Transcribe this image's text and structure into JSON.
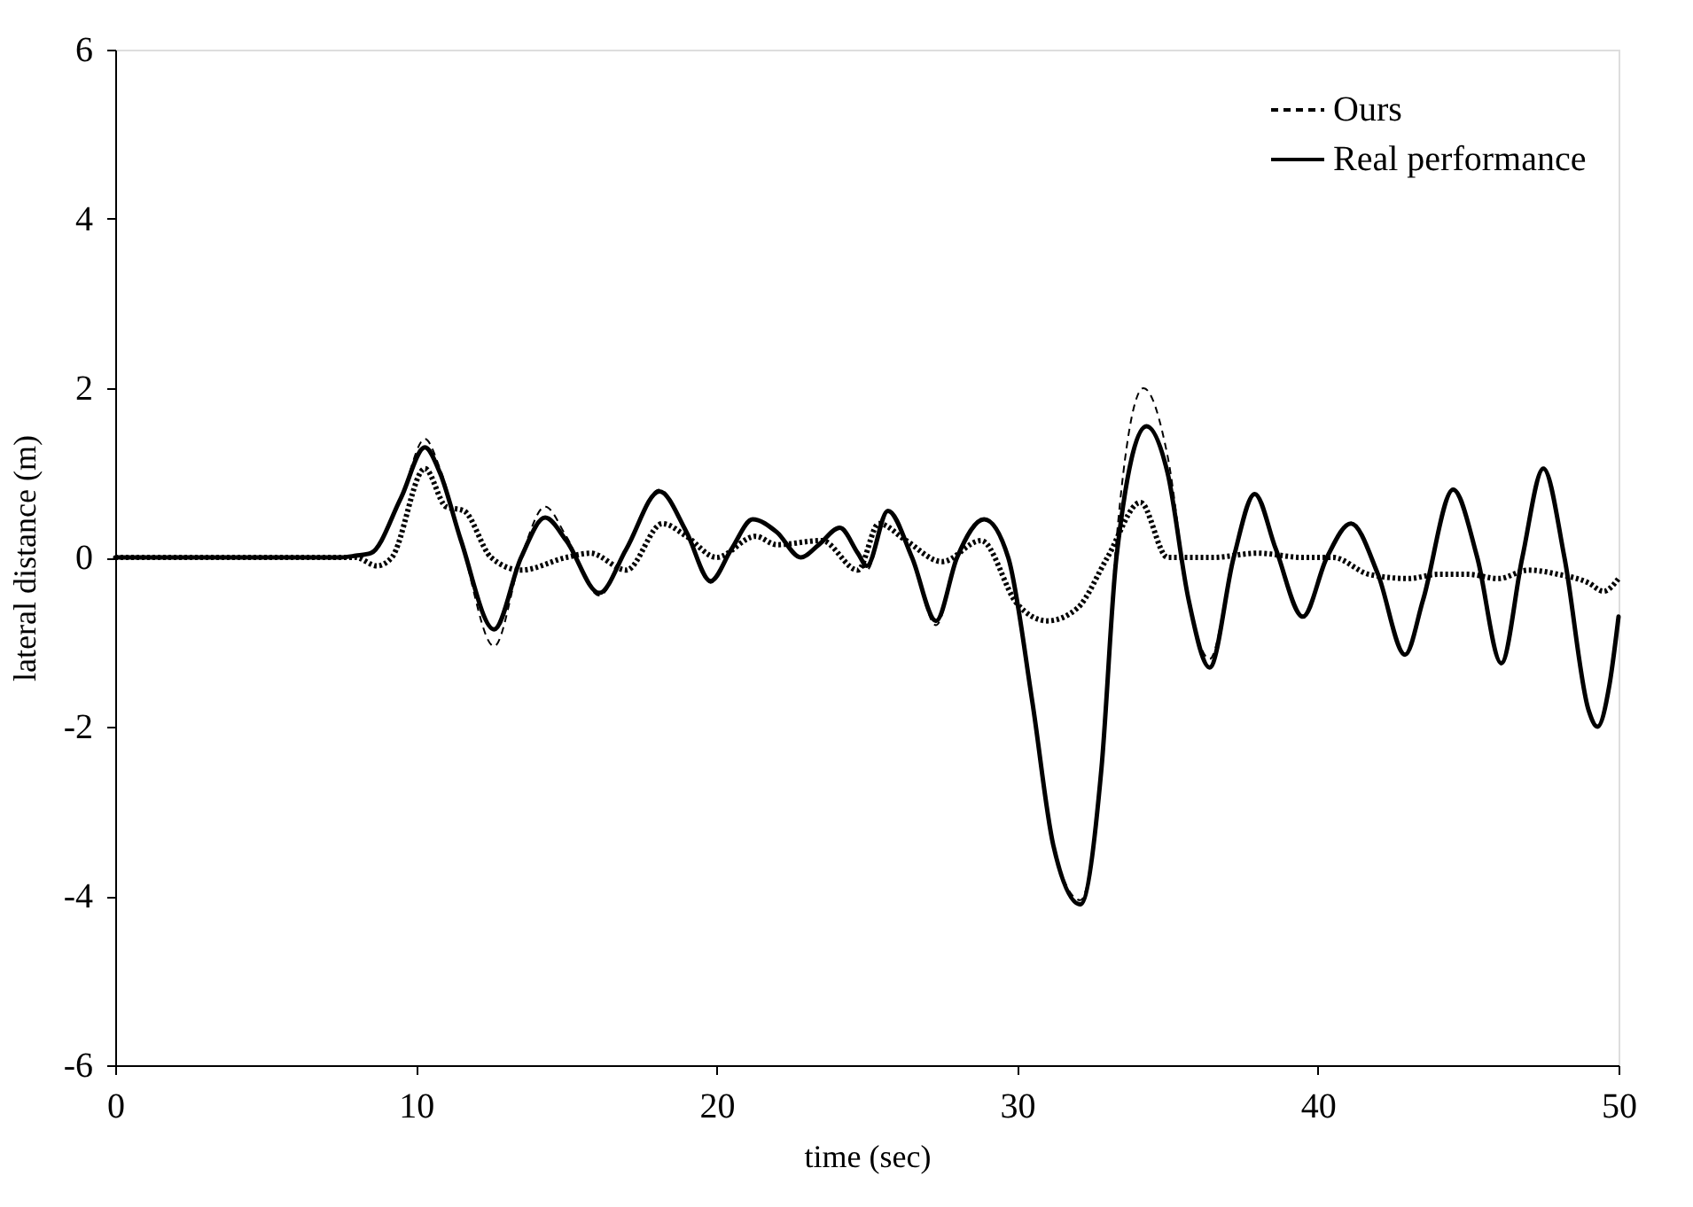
{
  "chart_data": {
    "type": "line",
    "xlabel": "time (sec)",
    "ylabel": "lateral distance (m)",
    "xlim": [
      0,
      50
    ],
    "xticks": [
      0,
      10,
      20,
      30,
      40,
      50
    ],
    "ylim": [
      -6,
      6
    ],
    "yticks": [
      -6,
      -4,
      -2,
      0,
      2,
      4,
      6
    ],
    "grid": false,
    "legend": "top right",
    "marker": "none",
    "series": [
      {
        "color": "#000000",
        "line_style": "dotted",
        "x": [
          0,
          4,
          8,
          8.7,
          9.2,
          10.3,
          11,
          11.6,
          12.5,
          13.5,
          15,
          15.8,
          17,
          18.2,
          19,
          20,
          21.3,
          22,
          23.5,
          24.7,
          25.4,
          26.3,
          27.5,
          28.8,
          30,
          31,
          32,
          33,
          34.1,
          35,
          36.5,
          38,
          39.5,
          40.5,
          41.7,
          43,
          44,
          45,
          46,
          47,
          48,
          49,
          49.5,
          50
        ],
        "values": [
          0,
          0,
          0,
          -0.1,
          0.0,
          1.05,
          0.6,
          0.55,
          0.0,
          -0.15,
          0.0,
          0.05,
          -0.15,
          0.4,
          0.25,
          0.0,
          0.25,
          0.15,
          0.2,
          -0.15,
          0.4,
          0.2,
          -0.05,
          0.2,
          -0.55,
          -0.75,
          -0.6,
          0.0,
          0.65,
          0.0,
          0.0,
          0.05,
          0.0,
          0.0,
          -0.2,
          -0.25,
          -0.2,
          -0.2,
          -0.25,
          -0.15,
          -0.2,
          -0.3,
          -0.4,
          -0.25
        ]
      },
      {
        "name": "Ours",
        "color": "#000000",
        "line_style": "dashed",
        "x": [
          0,
          4,
          7.5,
          8,
          8.5,
          9.5,
          10.3,
          10.8,
          11.5,
          12.6,
          13.5,
          14.3,
          15,
          16.1,
          17,
          18.1,
          19,
          19.8,
          20.5,
          21.2,
          22,
          22.8,
          23.4,
          24.1,
          24.7,
          25,
          25.7,
          26.5,
          27.3,
          28,
          28.9,
          29.7,
          30.5,
          31.2,
          32.1,
          32.8,
          33.3,
          34.2,
          35,
          35.7,
          36.4,
          37.2,
          37.9,
          38.6,
          39.5,
          40.3,
          41.1,
          42,
          42.9,
          43.5,
          44.5,
          45.3,
          46.1,
          46.8,
          47.5,
          48.2,
          49,
          49.3,
          49.7,
          50
        ],
        "values": [
          0,
          0,
          0,
          0.02,
          0.05,
          0.7,
          1.4,
          1.05,
          0.2,
          -1.05,
          0.0,
          0.6,
          0.25,
          -0.45,
          0.1,
          0.8,
          0.3,
          -0.3,
          0.1,
          0.45,
          0.3,
          0.0,
          0.15,
          0.35,
          0.05,
          -0.15,
          0.55,
          0.0,
          -0.8,
          0.0,
          0.45,
          0.0,
          -1.7,
          -3.4,
          -4.05,
          -2.5,
          0.2,
          2.0,
          1.2,
          -0.5,
          -1.2,
          0.0,
          0.75,
          0.1,
          -0.7,
          0.0,
          0.4,
          -0.2,
          -1.15,
          -0.5,
          0.8,
          0.0,
          -1.25,
          0.0,
          1.05,
          0.0,
          -1.8,
          -2.0,
          -1.5,
          -0.7
        ]
      },
      {
        "name": "Real performance",
        "color": "#000000",
        "line_style": "solid",
        "x": [
          0,
          4,
          7.5,
          8,
          8.5,
          9.5,
          10.3,
          10.8,
          11.5,
          12.6,
          13.5,
          14.3,
          15,
          16.1,
          17,
          18.1,
          19,
          19.8,
          20.5,
          21.2,
          22,
          22.8,
          23.4,
          24.1,
          24.7,
          25,
          25.7,
          26.5,
          27.3,
          28,
          28.9,
          29.7,
          30.5,
          31.2,
          32.1,
          32.8,
          33.3,
          34.3,
          35,
          35.7,
          36.4,
          37.2,
          37.9,
          38.6,
          39.5,
          40.3,
          41.1,
          42,
          42.9,
          43.5,
          44.5,
          45.3,
          46.1,
          46.8,
          47.5,
          48.2,
          49,
          49.3,
          49.7,
          50
        ],
        "values": [
          0,
          0,
          0,
          0.02,
          0.05,
          0.7,
          1.3,
          1.0,
          0.2,
          -0.85,
          0.0,
          0.47,
          0.2,
          -0.42,
          0.1,
          0.78,
          0.3,
          -0.28,
          0.1,
          0.45,
          0.3,
          0.0,
          0.15,
          0.35,
          0.05,
          -0.1,
          0.55,
          0.0,
          -0.75,
          0.0,
          0.45,
          0.0,
          -1.7,
          -3.4,
          -4.1,
          -2.5,
          0.0,
          1.55,
          1.0,
          -0.5,
          -1.3,
          0.0,
          0.75,
          0.1,
          -0.7,
          0.0,
          0.4,
          -0.2,
          -1.15,
          -0.5,
          0.8,
          0.0,
          -1.25,
          0.0,
          1.05,
          0.0,
          -1.8,
          -2.0,
          -1.5,
          -0.7
        ]
      }
    ]
  }
}
